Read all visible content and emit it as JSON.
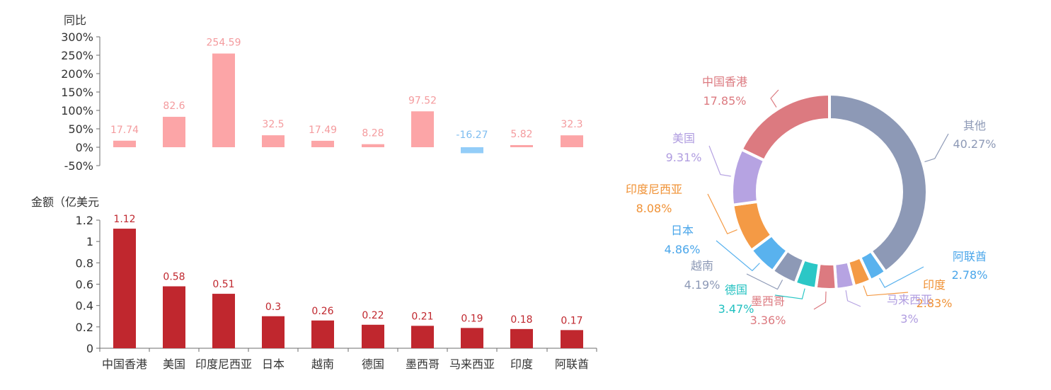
{
  "chart_data": [
    {
      "type": "bar",
      "ylabel": "同比",
      "categories": [
        "中国香港",
        "美国",
        "印度尼西亚",
        "日本",
        "越南",
        "德国",
        "墨西哥",
        "马来西亚",
        "印度",
        "阿联酋"
      ],
      "values": [
        17.74,
        82.6,
        254.59,
        32.5,
        17.49,
        8.28,
        97.52,
        -16.27,
        5.82,
        32.3
      ],
      "data_labels": [
        "17.74",
        "82.6",
        "254.59",
        "32.5",
        "17.49",
        "8.28",
        "97.52",
        "-16.27",
        "5.82",
        "32.3"
      ],
      "ylim": [
        -50,
        300
      ],
      "yticks": [
        "-50%",
        "0%",
        "50%",
        "100%",
        "150%",
        "200%",
        "250%",
        "300%"
      ],
      "grid": false,
      "colors": {
        "positive": "#fca5a7",
        "negative": "#93cdf8",
        "positive_label": "#f49b9e",
        "negative_label": "#7fbdf0"
      }
    },
    {
      "type": "bar",
      "ylabel": "金额（亿美元",
      "categories": [
        "中国香港",
        "美国",
        "印度尼西亚",
        "日本",
        "越南",
        "德国",
        "墨西哥",
        "马来西亚",
        "印度",
        "阿联酋"
      ],
      "values": [
        1.12,
        0.58,
        0.51,
        0.3,
        0.26,
        0.22,
        0.21,
        0.19,
        0.18,
        0.17
      ],
      "data_labels": [
        "1.12",
        "0.58",
        "0.51",
        "0.3",
        "0.26",
        "0.22",
        "0.21",
        "0.19",
        "0.18",
        "0.17"
      ],
      "ylim": [
        0,
        1.2
      ],
      "yticks": [
        "0",
        "0.2",
        "0.4",
        "0.6",
        "0.8",
        "1",
        "1.2"
      ],
      "grid": false,
      "colors": {
        "bar": "#c0272e",
        "label": "#c0272e"
      }
    },
    {
      "type": "pie",
      "variant": "donut",
      "slices": [
        {
          "name": "其他",
          "value": 40.27,
          "label": "40.27%",
          "color": "#8d99b6"
        },
        {
          "name": "阿联酋",
          "value": 2.78,
          "label": "2.78%",
          "color": "#59b2ee"
        },
        {
          "name": "印度",
          "value": 2.83,
          "label": "2.83%",
          "color": "#f49a45"
        },
        {
          "name": "马来西亚",
          "value": 3,
          "label": "3%",
          "color": "#b6a3e2"
        },
        {
          "name": "墨西哥",
          "value": 3.36,
          "label": "3.36%",
          "color": "#dc7a80"
        },
        {
          "name": "德国",
          "value": 3.47,
          "label": "3.47%",
          "color": "#2bc7c6"
        },
        {
          "name": "越南",
          "value": 4.19,
          "label": "4.19%",
          "color": "#8d99b6"
        },
        {
          "name": "日本",
          "value": 4.86,
          "label": "4.86%",
          "color": "#59b2ee"
        },
        {
          "name": "印度尼西亚",
          "value": 8.08,
          "label": "8.08%",
          "color": "#f49a45"
        },
        {
          "name": "美国",
          "value": 9.31,
          "label": "9.31%",
          "color": "#b6a3e2"
        },
        {
          "name": "中国香港",
          "value": 17.85,
          "label": "17.85%",
          "color": "#dc7a80"
        }
      ],
      "start_angle_deg": 0,
      "direction": "clockwise",
      "label_colors": {
        "其他": "#8d99b6",
        "阿联酋": "#4aa6ea",
        "印度": "#f09236",
        "马来西亚": "#b09de0",
        "墨西哥": "#dc7a80",
        "德国": "#20c0c0",
        "越南": "#8d99b6",
        "日本": "#4aa6ea",
        "印度尼西亚": "#f09236",
        "美国": "#b09de0",
        "中国香港": "#dc7a80"
      }
    }
  ]
}
